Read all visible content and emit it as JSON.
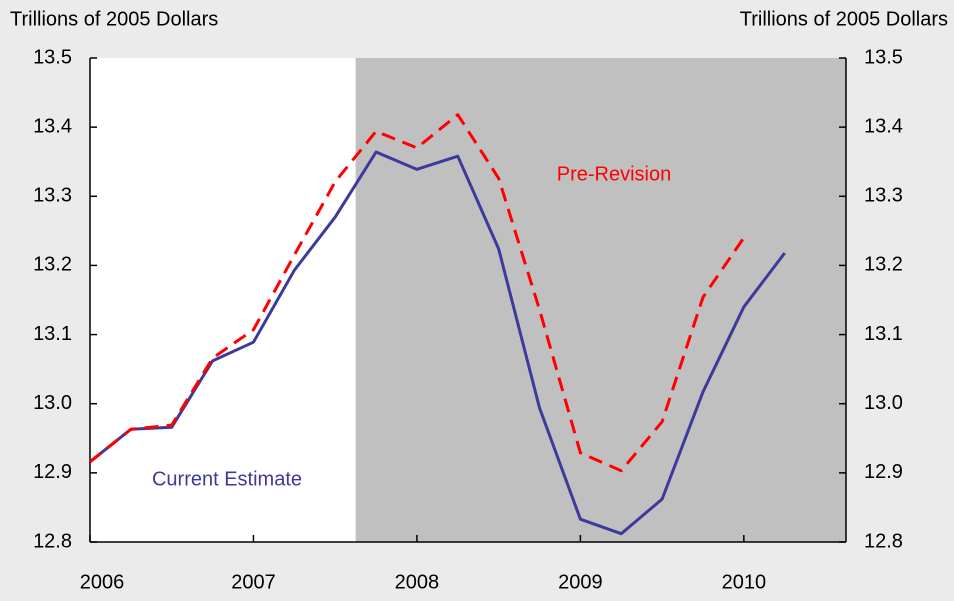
{
  "chart_data": {
    "type": "line",
    "y_title": "Trillions of 2005 Dollars",
    "y2_title": "Trillions of 2005 Dollars",
    "x": [
      2006,
      2006.25,
      2006.5,
      2006.75,
      2007,
      2007.25,
      2007.5,
      2007.75,
      2008,
      2008.25,
      2008.5,
      2008.75,
      2009,
      2009.25,
      2009.5,
      2009.75,
      2010,
      2010.25
    ],
    "series": [
      {
        "name": "Current Estimate",
        "color": "#3d3a9c",
        "dash": false,
        "values": [
          12.916,
          12.963,
          12.966,
          13.062,
          13.089,
          13.193,
          13.27,
          13.364,
          13.339,
          13.358,
          13.224,
          12.994,
          12.833,
          12.812,
          12.862,
          13.017,
          13.14,
          13.218
        ]
      },
      {
        "name": "Pre-Revision",
        "color": "#ff0000",
        "dash": true,
        "values": [
          12.916,
          12.963,
          12.969,
          13.066,
          13.107,
          13.215,
          13.321,
          13.394,
          13.37,
          13.418,
          13.326,
          13.136,
          12.929,
          12.903,
          12.974,
          13.154,
          13.24,
          null
        ]
      }
    ],
    "shade": [
      2007.625,
      2010.625
    ],
    "shade_color": "#c0c0c0",
    "xlim": [
      2006,
      2010.625
    ],
    "xticks": [
      2006,
      2007,
      2008,
      2009,
      2010
    ],
    "ylim": [
      12.8,
      13.5
    ],
    "yticks": [
      12.8,
      12.9,
      {
        "value": 13,
        "label": "13.0"
      },
      13.1,
      13.2,
      13.3,
      13.4,
      13.5
    ],
    "y2lim": [
      12.8,
      13.5
    ],
    "y2ticks": [
      12.8,
      12.9,
      {
        "value": 13,
        "label": "13.0"
      },
      13.1,
      13.2,
      13.3,
      13.4,
      13.5
    ]
  }
}
